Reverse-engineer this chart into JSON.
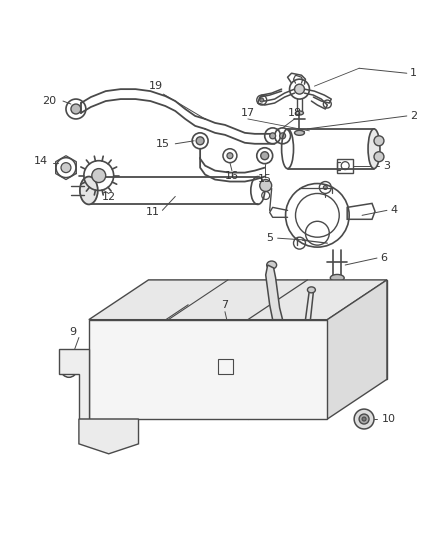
{
  "bg_color": "#ffffff",
  "line_color": "#4a4a4a",
  "text_color": "#333333",
  "fig_width": 4.38,
  "fig_height": 5.33,
  "dpi": 100
}
